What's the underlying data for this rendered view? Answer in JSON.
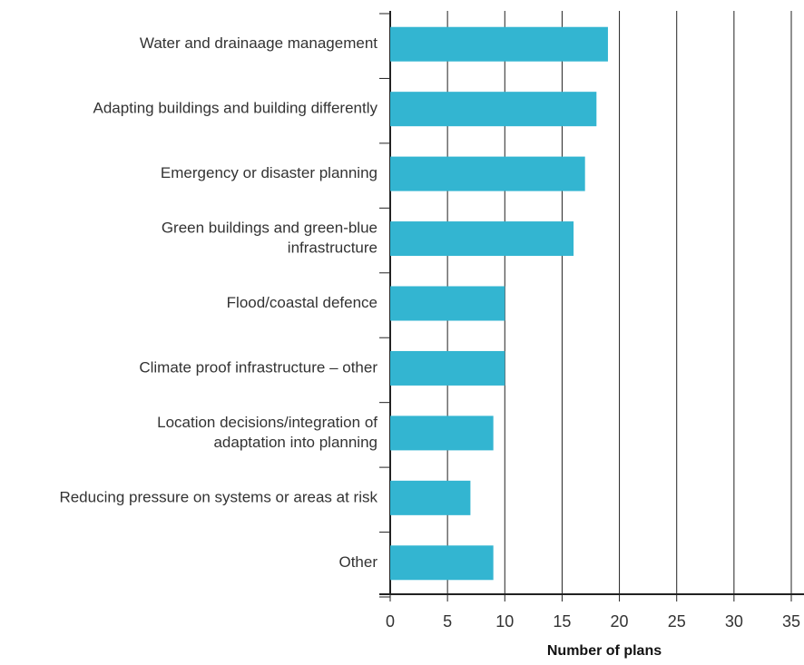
{
  "chart_data": {
    "type": "barh",
    "categories": [
      "Water and drainaage management",
      "Adapting buildings and building differently",
      "Emergency or disaster planning",
      [
        "Green buildings and green-blue",
        "infrastructure"
      ],
      "Flood/coastal defence",
      "Climate proof infrastructure – other",
      [
        "Location decisions/integration of",
        "adaptation into planning"
      ],
      "Reducing pressure on systems or areas at risk",
      "Other"
    ],
    "values": [
      19,
      18,
      17,
      16,
      10,
      10,
      9,
      7,
      9
    ],
    "color": "#33b5d1",
    "xlabel": "Number of plans",
    "xlim": [
      0,
      35
    ],
    "xticks": [
      0,
      5,
      10,
      15,
      20,
      25,
      30,
      35
    ],
    "grid": true
  }
}
